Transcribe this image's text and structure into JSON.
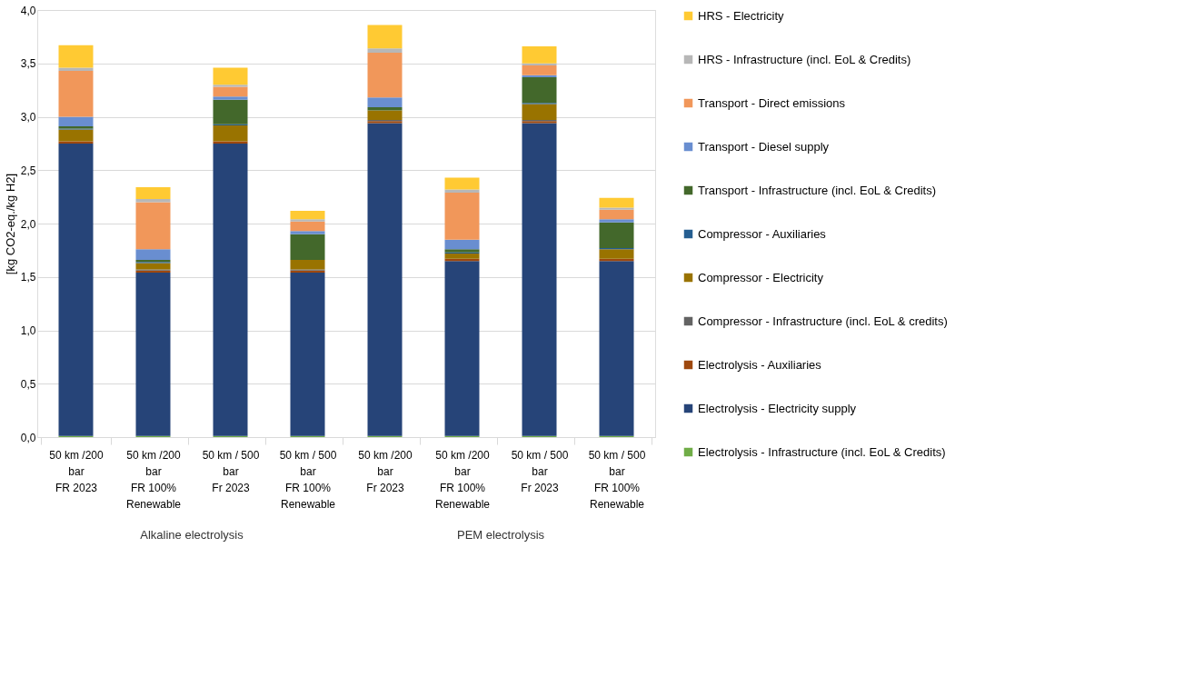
{
  "chart_data": {
    "type": "bar",
    "stacked": true,
    "ylabel": "[kg CO2-eq./kg H2]",
    "categories": [
      "50 km /200\nbar\nFR 2023",
      "50 km /200\nbar\nFR 100%\nRenewable",
      "50 km / 500\nbar\nFr 2023",
      "50 km / 500\nbar\nFR 100%\nRenewable",
      "50 km /200\nbar\nFr 2023",
      "50 km /200\nbar\nFR 100%\nRenewable",
      "50 km / 500\nbar\nFr 2023",
      "50 km / 500\nbar\nFR 100%\nRenewable"
    ],
    "annotations": [
      "Alkaline electrolysis",
      "PEM electrolysis"
    ],
    "series": [
      {
        "name": "Electrolysis - Infrastructure (incl. EoL & Credits)",
        "color": "#70ad47",
        "values": [
          0.01,
          0.01,
          0.01,
          0.01,
          0.01,
          0.01,
          0.01,
          0.01
        ]
      },
      {
        "name": "Electrolysis - Electricity supply",
        "color": "#264478",
        "values": [
          2.74,
          1.53,
          2.74,
          1.53,
          2.93,
          1.64,
          2.93,
          1.64
        ]
      },
      {
        "name": "Electrolysis - Auxiliaries",
        "color": "#9e480e",
        "values": [
          0.02,
          0.02,
          0.02,
          0.02,
          0.02,
          0.02,
          0.02,
          0.02
        ]
      },
      {
        "name": "Compressor - Infrastructure (incl. EoL & credits)",
        "color": "#636363",
        "values": [
          null,
          0.01,
          null,
          0.01,
          0.01,
          null,
          0.01,
          null
        ]
      },
      {
        "name": "Compressor - Electricity",
        "color": "#997300",
        "values": [
          0.11,
          0.06,
          0.15,
          0.09,
          0.09,
          0.05,
          0.15,
          0.09
        ]
      },
      {
        "name": "Compressor - Auxiliaries",
        "color": "#255e91",
        "values": [
          0.01,
          0.01,
          0.01,
          null,
          null,
          0.01,
          0.01,
          0.01
        ]
      },
      {
        "name": "Transport - Infrastructure (incl. EoL & Credits)",
        "color": "#43682b",
        "values": [
          0.02,
          0.02,
          0.23,
          0.24,
          0.03,
          0.03,
          0.24,
          0.24
        ]
      },
      {
        "name": "Transport - Diesel supply",
        "color": "#698ed0",
        "values": [
          0.09,
          0.1,
          0.03,
          0.03,
          0.09,
          0.09,
          0.02,
          0.03
        ]
      },
      {
        "name": "Transport - Direct emissions",
        "color": "#f1975a",
        "values": [
          0.43,
          0.44,
          0.09,
          0.09,
          0.42,
          0.44,
          0.09,
          0.09
        ]
      },
      {
        "name": "HRS - Infrastructure (incl. EoL & Credits)",
        "color": "#b7b7b7",
        "values": [
          0.03,
          0.03,
          0.02,
          0.02,
          0.04,
          0.03,
          0.02,
          0.02
        ]
      },
      {
        "name": "HRS - Electricity",
        "color": "#ffca33",
        "values": [
          0.21,
          0.11,
          0.16,
          0.08,
          0.22,
          0.11,
          0.16,
          0.09
        ]
      }
    ],
    "ylim": [
      0,
      4
    ],
    "yticks": [
      {
        "value": 0,
        "label": "0,0"
      },
      {
        "value": 0.5,
        "label": "0,5"
      },
      {
        "value": 1,
        "label": "1,0"
      },
      {
        "value": 1.5,
        "label": "1,5"
      },
      {
        "value": 2,
        "label": "2,0"
      },
      {
        "value": 2.5,
        "label": "2,5"
      },
      {
        "value": 3,
        "label": "3,0"
      },
      {
        "value": 3.5,
        "label": "3,5"
      },
      {
        "value": 4,
        "label": "4,0"
      }
    ],
    "grid": "y",
    "legend": "right"
  }
}
